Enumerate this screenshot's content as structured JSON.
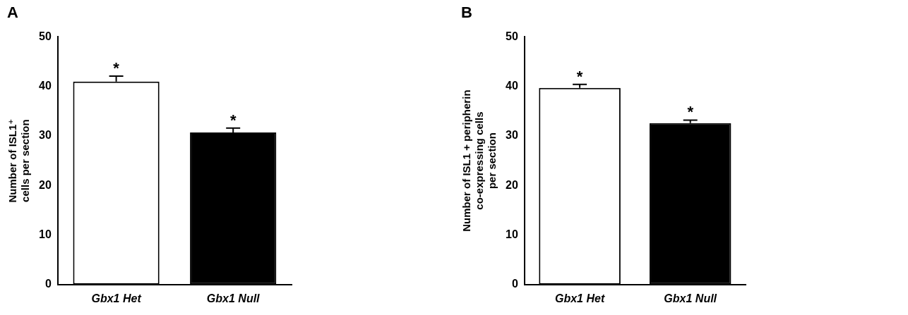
{
  "chart_data": [
    {
      "type": "bar",
      "title": "A",
      "categories": [
        "Gbx1 Het",
        "Gbx1 Null"
      ],
      "values": [
        41.0,
        30.7
      ],
      "errors": [
        1.1,
        0.9
      ],
      "annotations": [
        "*",
        "*"
      ],
      "colors": [
        "#ffffff",
        "#000000"
      ],
      "ylabel": [
        "Number of ISL1⁺",
        "cells per section"
      ],
      "ylim": [
        0,
        50
      ],
      "yticks": [
        0,
        10,
        20,
        30,
        40,
        50
      ],
      "grid": false
    },
    {
      "type": "bar",
      "title": "B",
      "categories": [
        "Gbx1 Het",
        "Gbx1 Null"
      ],
      "values": [
        39.7,
        32.6
      ],
      "errors": [
        0.7,
        0.6
      ],
      "annotations": [
        "*",
        "*"
      ],
      "colors": [
        "#ffffff",
        "#000000"
      ],
      "ylabel": [
        "Number of ISL1 + peripherin",
        "co-expressing cells",
        "per section"
      ],
      "ylim": [
        0,
        50
      ],
      "yticks": [
        0,
        10,
        20,
        30,
        40,
        50
      ],
      "grid": false
    }
  ]
}
